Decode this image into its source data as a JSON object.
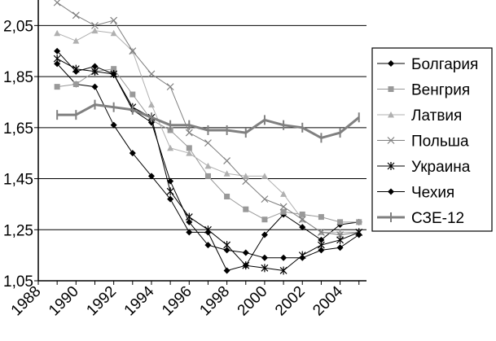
{
  "chart_data": {
    "type": "line",
    "title": "",
    "xlabel": "",
    "ylabel": "",
    "ylim": [
      1.05,
      2.15
    ],
    "xlim": [
      1988,
      2005.4
    ],
    "y_ticks": [
      "1,05",
      "1,25",
      "1,45",
      "1,65",
      "1,85",
      "2,05"
    ],
    "y_tick_values": [
      1.05,
      1.25,
      1.45,
      1.65,
      1.85,
      2.05
    ],
    "x_ticks": [
      "1988",
      "1990",
      "1992",
      "1994",
      "1996",
      "1998",
      "2000",
      "2002",
      "2004"
    ],
    "x_tick_values": [
      1988,
      1990,
      1992,
      1994,
      1996,
      1998,
      2000,
      2002,
      2004
    ],
    "grid": "horizontal",
    "legend_position": "right",
    "x": [
      1989,
      1990,
      1991,
      1992,
      1993,
      1994,
      1995,
      1996,
      1997,
      1998,
      1999,
      2000,
      2001,
      2002,
      2003,
      2004,
      2005
    ],
    "series": [
      {
        "name": "Болгария",
        "color": "#000000",
        "marker": "diamond",
        "width": 1,
        "values": [
          1.9,
          1.82,
          1.81,
          1.66,
          1.55,
          1.46,
          1.37,
          1.24,
          1.24,
          1.09,
          1.11,
          1.23,
          1.31,
          1.26,
          1.21,
          1.27,
          1.28
        ]
      },
      {
        "name": "Венгрия",
        "color": "#999999",
        "marker": "square",
        "width": 1,
        "values": [
          1.81,
          1.82,
          1.87,
          1.88,
          1.78,
          1.68,
          1.64,
          1.57,
          1.46,
          1.38,
          1.33,
          1.29,
          1.32,
          1.31,
          1.3,
          1.28,
          1.28
        ]
      },
      {
        "name": "Латвия",
        "color": "#b0b0b0",
        "marker": "triangle",
        "width": 1,
        "values": [
          2.02,
          1.99,
          2.03,
          2.02,
          1.95,
          1.74,
          1.57,
          1.55,
          1.5,
          1.47,
          1.46,
          1.46,
          1.39,
          1.29,
          1.24,
          1.24,
          1.24
        ]
      },
      {
        "name": "Польша",
        "color": "#7f7f7f",
        "marker": "x",
        "width": 1,
        "values": [
          2.14,
          2.09,
          2.05,
          2.07,
          1.95,
          1.86,
          1.81,
          1.63,
          1.59,
          1.52,
          1.44,
          1.37,
          1.34,
          1.29,
          1.24,
          1.23,
          1.24
        ]
      },
      {
        "name": "Украина",
        "color": "#000000",
        "marker": "star",
        "width": 1,
        "values": [
          1.92,
          1.88,
          1.87,
          1.86,
          1.73,
          1.69,
          1.4,
          1.3,
          1.25,
          1.19,
          1.11,
          1.1,
          1.09,
          1.15,
          1.19,
          1.21,
          1.24
        ]
      },
      {
        "name": "Чехия",
        "color": "#000000",
        "marker": "diamond",
        "width": 1,
        "values": [
          1.95,
          1.87,
          1.89,
          1.86,
          1.72,
          1.67,
          1.44,
          1.28,
          1.19,
          1.17,
          1.16,
          1.14,
          1.14,
          1.14,
          1.17,
          1.18,
          1.23
        ]
      },
      {
        "name": "СЗЕ-12",
        "color": "#808080",
        "marker": "plus",
        "width": 3,
        "values": [
          1.7,
          1.7,
          1.74,
          1.73,
          1.72,
          1.69,
          1.66,
          1.66,
          1.64,
          1.64,
          1.63,
          1.68,
          1.66,
          1.65,
          1.61,
          1.63,
          1.69
        ]
      }
    ]
  }
}
